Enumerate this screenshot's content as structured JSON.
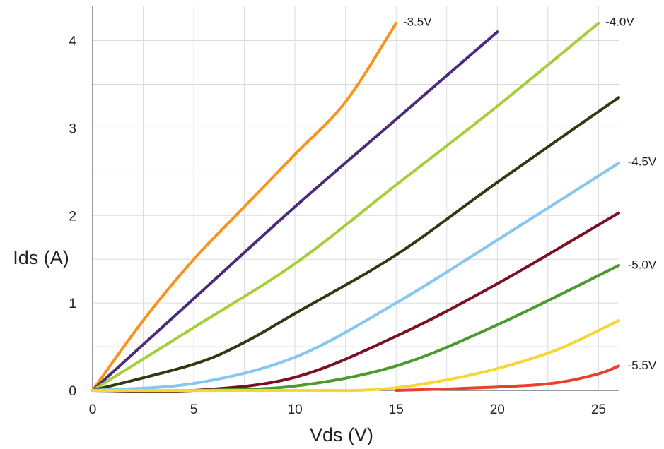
{
  "chart_data": {
    "type": "line",
    "title": "",
    "xlabel": "Vds (V)",
    "ylabel": "Ids (A)",
    "xlim": [
      0,
      26
    ],
    "ylim": [
      0,
      4.4
    ],
    "xticks": [
      0,
      5,
      10,
      15,
      20,
      25
    ],
    "yticks": [
      0,
      1,
      2,
      3,
      4
    ],
    "grid": true,
    "series": [
      {
        "color": "#f7941d",
        "points": [
          [
            0,
            0
          ],
          [
            2.5,
            0.8
          ],
          [
            5,
            1.5
          ],
          [
            7.5,
            2.1
          ],
          [
            10,
            2.7
          ],
          [
            12.5,
            3.3
          ],
          [
            15,
            4.2
          ]
        ]
      },
      {
        "color": "#4b2a7a",
        "points": [
          [
            0,
            0
          ],
          [
            5,
            1.05
          ],
          [
            10,
            2.1
          ],
          [
            15,
            3.1
          ],
          [
            20,
            4.1
          ]
        ]
      },
      {
        "color": "#a6ce39",
        "points": [
          [
            0,
            0
          ],
          [
            5,
            0.72
          ],
          [
            10,
            1.45
          ],
          [
            15,
            2.35
          ],
          [
            20,
            3.25
          ],
          [
            25,
            4.2
          ]
        ]
      },
      {
        "color": "#2f3a12",
        "points": [
          [
            0,
            0
          ],
          [
            5,
            0.3
          ],
          [
            7.5,
            0.55
          ],
          [
            10,
            0.88
          ],
          [
            15,
            1.55
          ],
          [
            20,
            2.38
          ],
          [
            26,
            3.35
          ]
        ]
      },
      {
        "color": "#86c7ef",
        "points": [
          [
            0,
            0
          ],
          [
            5,
            0.08
          ],
          [
            10,
            0.38
          ],
          [
            15,
            1.0
          ],
          [
            20,
            1.72
          ],
          [
            26,
            2.6
          ]
        ]
      },
      {
        "color": "#7b0f23",
        "points": [
          [
            0,
            0
          ],
          [
            5,
            0.0
          ],
          [
            10,
            0.15
          ],
          [
            15,
            0.62
          ],
          [
            20,
            1.22
          ],
          [
            26,
            2.03
          ]
        ]
      },
      {
        "color": "#4a9a2c",
        "points": [
          [
            0,
            0
          ],
          [
            5,
            0
          ],
          [
            10,
            0.05
          ],
          [
            15,
            0.28
          ],
          [
            20,
            0.75
          ],
          [
            26,
            1.43
          ]
        ]
      },
      {
        "color": "#f7d533",
        "points": [
          [
            0,
            0
          ],
          [
            10,
            0
          ],
          [
            14,
            0.01
          ],
          [
            17,
            0.1
          ],
          [
            20,
            0.25
          ],
          [
            23,
            0.47
          ],
          [
            26,
            0.8
          ]
        ]
      },
      {
        "color": "#e8402a",
        "points": [
          [
            15,
            0
          ],
          [
            18,
            0.02
          ],
          [
            21,
            0.05
          ],
          [
            23,
            0.09
          ],
          [
            25,
            0.19
          ],
          [
            26,
            0.28
          ]
        ]
      }
    ],
    "annotations": [
      {
        "text": "-3.5V",
        "x": 15.2,
        "y": 4.22
      },
      {
        "text": "-4.0V",
        "x": 25.2,
        "y": 4.22
      },
      {
        "text": "-4.5V",
        "x": 26.3,
        "y": 2.62
      },
      {
        "text": "-5.0V",
        "x": 26.3,
        "y": 1.44
      },
      {
        "text": "-5.5V",
        "x": 26.3,
        "y": 0.29
      }
    ]
  }
}
